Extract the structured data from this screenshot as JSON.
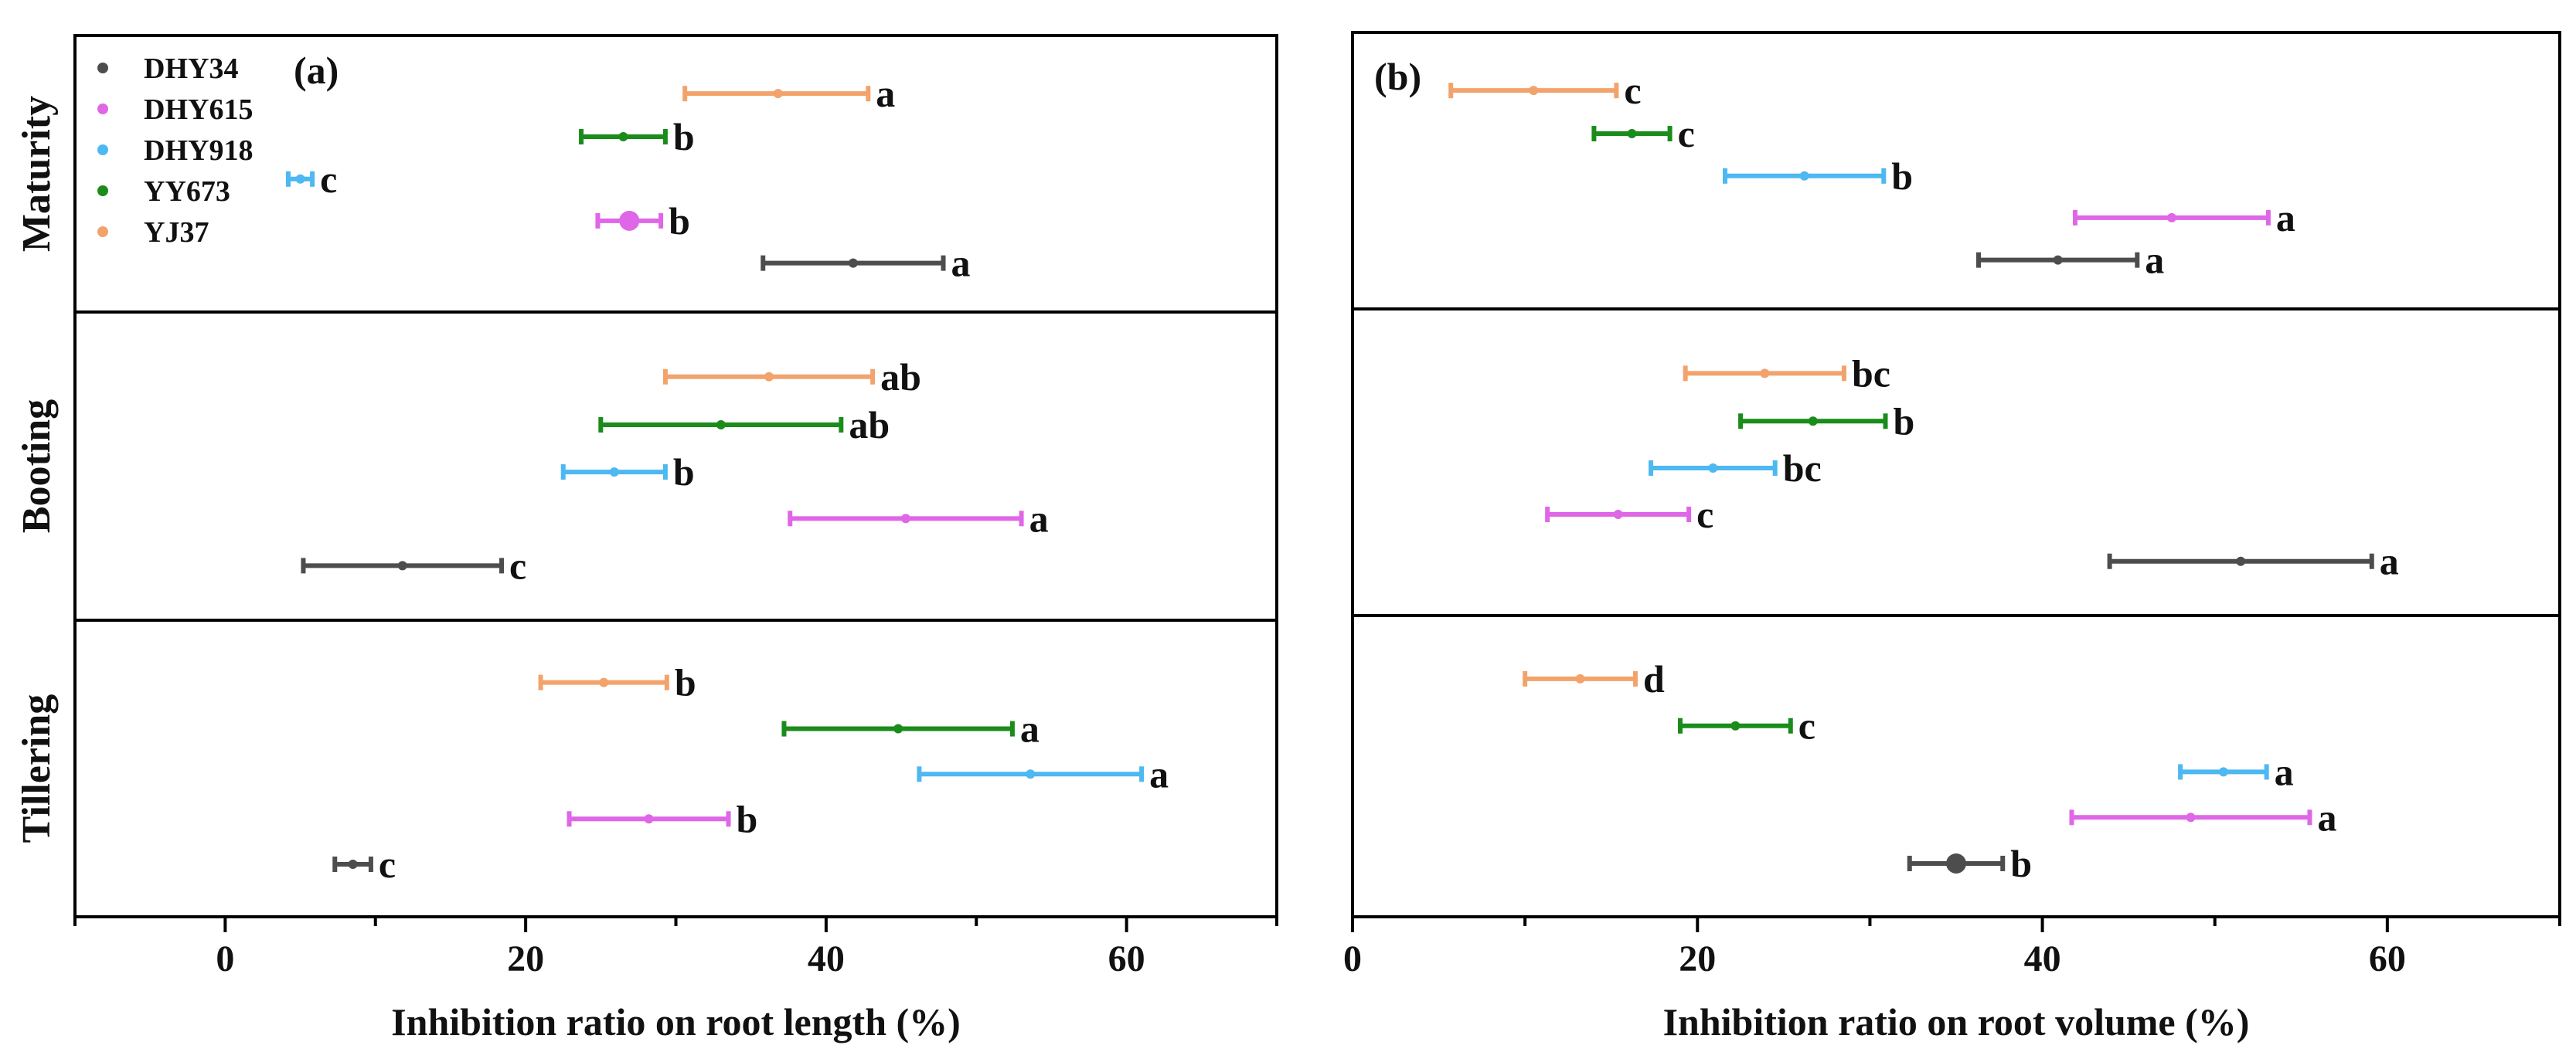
{
  "chart_data": [
    {
      "type": "errorbar",
      "panel_label": "(a)",
      "xlabel": "Inhibition ratio on root length (%)",
      "xlim": [
        -10,
        70
      ],
      "xticks": [
        0,
        20,
        40,
        60
      ],
      "stages": [
        "Tillering",
        "Booting",
        "Maturity"
      ],
      "series": [
        {
          "name": "DHY34",
          "color": "#4d4d4d",
          "points": [
            {
              "stage": "Tillering",
              "mean": 8.5,
              "low": 7.3,
              "high": 9.7,
              "sig": "c"
            },
            {
              "stage": "Booting",
              "mean": 11.8,
              "low": 5.2,
              "high": 18.4,
              "sig": "c"
            },
            {
              "stage": "Maturity",
              "mean": 41.8,
              "low": 35.8,
              "high": 47.8,
              "sig": "a"
            }
          ]
        },
        {
          "name": "DHY615",
          "color": "#e066e8",
          "points": [
            {
              "stage": "Tillering",
              "mean": 28.2,
              "low": 22.9,
              "high": 33.5,
              "sig": "b"
            },
            {
              "stage": "Booting",
              "mean": 45.3,
              "low": 37.6,
              "high": 53.0,
              "sig": "a"
            },
            {
              "stage": "Maturity",
              "mean": 26.9,
              "low": 24.8,
              "high": 29.0,
              "sig": "b"
            }
          ]
        },
        {
          "name": "DHY918",
          "color": "#4db8f2",
          "points": [
            {
              "stage": "Tillering",
              "mean": 53.6,
              "low": 46.2,
              "high": 61.0,
              "sig": "a"
            },
            {
              "stage": "Booting",
              "mean": 25.9,
              "low": 22.5,
              "high": 29.3,
              "sig": "b"
            },
            {
              "stage": "Maturity",
              "mean": 5.0,
              "low": 4.2,
              "high": 5.8,
              "sig": "c"
            }
          ]
        },
        {
          "name": "YY673",
          "color": "#1a8c1a",
          "points": [
            {
              "stage": "Tillering",
              "mean": 44.8,
              "low": 37.2,
              "high": 52.4,
              "sig": "a"
            },
            {
              "stage": "Booting",
              "mean": 33.0,
              "low": 25.0,
              "high": 41.0,
              "sig": "ab"
            },
            {
              "stage": "Maturity",
              "mean": 26.5,
              "low": 23.7,
              "high": 29.3,
              "sig": "b"
            }
          ]
        },
        {
          "name": "YJ37",
          "color": "#f2a36b",
          "points": [
            {
              "stage": "Tillering",
              "mean": 25.2,
              "low": 21.0,
              "high": 29.4,
              "sig": "b"
            },
            {
              "stage": "Booting",
              "mean": 36.2,
              "low": 29.3,
              "high": 43.1,
              "sig": "ab"
            },
            {
              "stage": "Maturity",
              "mean": 36.8,
              "low": 30.6,
              "high": 42.8,
              "sig": "a"
            }
          ]
        }
      ]
    },
    {
      "type": "errorbar",
      "panel_label": "(b)",
      "xlabel": "Inhibition ratio on root volume (%)",
      "xlim": [
        0,
        70
      ],
      "xticks": [
        0,
        20,
        40,
        60
      ],
      "stages": [
        "Tillering",
        "Booting",
        "Maturity"
      ],
      "series": [
        {
          "name": "DHY34",
          "color": "#4d4d4d",
          "points": [
            {
              "stage": "Tillering",
              "mean": 35.0,
              "low": 32.3,
              "high": 37.7,
              "sig": "b"
            },
            {
              "stage": "Booting",
              "mean": 51.5,
              "low": 43.9,
              "high": 59.1,
              "sig": "a"
            },
            {
              "stage": "Maturity",
              "mean": 40.9,
              "low": 36.3,
              "high": 45.5,
              "sig": "a"
            }
          ]
        },
        {
          "name": "DHY615",
          "color": "#e066e8",
          "points": [
            {
              "stage": "Tillering",
              "mean": 48.6,
              "low": 41.7,
              "high": 55.5,
              "sig": "a"
            },
            {
              "stage": "Booting",
              "mean": 15.4,
              "low": 11.3,
              "high": 19.5,
              "sig": "c"
            },
            {
              "stage": "Maturity",
              "mean": 47.5,
              "low": 41.9,
              "high": 53.1,
              "sig": "a"
            }
          ]
        },
        {
          "name": "DHY918",
          "color": "#4db8f2",
          "points": [
            {
              "stage": "Tillering",
              "mean": 50.5,
              "low": 48.0,
              "high": 53.0,
              "sig": "a"
            },
            {
              "stage": "Booting",
              "mean": 20.9,
              "low": 17.3,
              "high": 24.5,
              "sig": "bc"
            },
            {
              "stage": "Maturity",
              "mean": 26.2,
              "low": 21.6,
              "high": 30.8,
              "sig": "b"
            }
          ]
        },
        {
          "name": "YY673",
          "color": "#1a8c1a",
          "points": [
            {
              "stage": "Tillering",
              "mean": 22.2,
              "low": 19.0,
              "high": 25.4,
              "sig": "c"
            },
            {
              "stage": "Booting",
              "mean": 26.7,
              "low": 22.5,
              "high": 30.9,
              "sig": "b"
            },
            {
              "stage": "Maturity",
              "mean": 16.2,
              "low": 14.0,
              "high": 18.4,
              "sig": "c"
            }
          ]
        },
        {
          "name": "YJ37",
          "color": "#f2a36b",
          "points": [
            {
              "stage": "Tillering",
              "mean": 13.2,
              "low": 10.0,
              "high": 16.4,
              "sig": "d"
            },
            {
              "stage": "Booting",
              "mean": 23.9,
              "low": 19.3,
              "high": 28.5,
              "sig": "bc"
            },
            {
              "stage": "Maturity",
              "mean": 10.5,
              "low": 5.7,
              "high": 15.3,
              "sig": "c"
            }
          ]
        }
      ]
    }
  ]
}
